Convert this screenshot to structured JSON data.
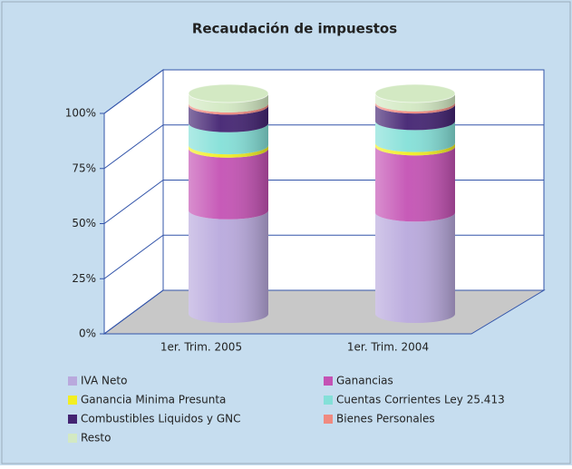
{
  "chart_data": {
    "type": "bar3d_cylinder_stacked",
    "title": "Recaudación de impuestos",
    "categories": [
      "1er. Trim. 2005",
      "1er. Trim. 2004"
    ],
    "series": [
      {
        "name": "IVA Neto",
        "color": "#b9a9dd",
        "values": [
          47,
          46
        ]
      },
      {
        "name": "Ganancias",
        "color": "#c452b4",
        "values": [
          28,
          30
        ]
      },
      {
        "name": "Ganancia Minima Presunta",
        "color": "#f2ee22",
        "values": [
          1.5,
          1.5
        ]
      },
      {
        "name": "Cuentas Corrientes Ley 25.413",
        "color": "#84e0d8",
        "values": [
          10,
          10
        ]
      },
      {
        "name": "Combustibles Liquidos y GNC",
        "color": "#432372",
        "values": [
          8,
          7.5
        ]
      },
      {
        "name": "Bienes Personales",
        "color": "#f08a80",
        "values": [
          1,
          1
        ]
      },
      {
        "name": "Resto",
        "color": "#d3e9c3",
        "values": [
          4.5,
          4
        ]
      }
    ],
    "ylim": [
      0,
      100
    ],
    "yticks": [
      {
        "value": 0,
        "label": "0%"
      },
      {
        "value": 25,
        "label": "25%"
      },
      {
        "value": 50,
        "label": "50%"
      },
      {
        "value": 75,
        "label": "75%"
      },
      {
        "value": 100,
        "label": "100%"
      }
    ],
    "grid": true
  }
}
